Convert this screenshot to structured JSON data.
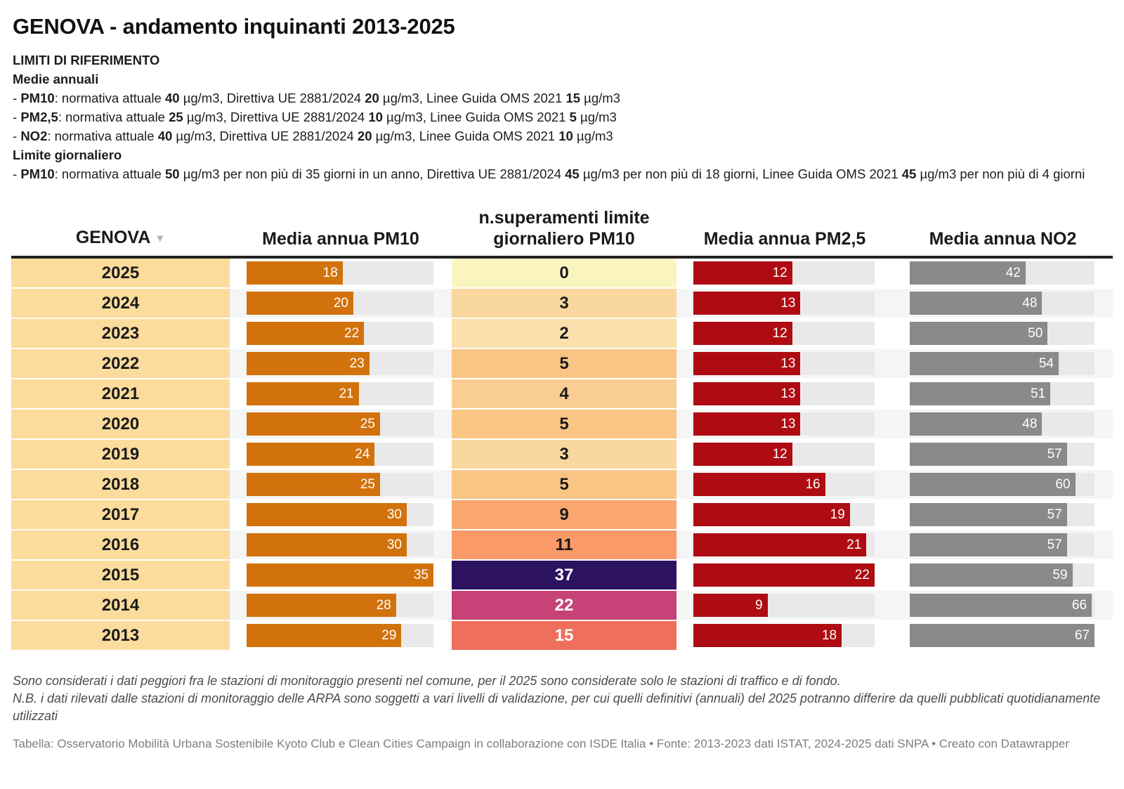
{
  "title": "GENOVA - andamento inquinanti 2013-2025",
  "limits": {
    "heading": "LIMITI DI RIFERIMENTO",
    "annual_heading": "Medie annuali",
    "annual_lines": [
      [
        {
          "t": "- "
        },
        {
          "t": "PM10",
          "b": true
        },
        {
          "t": ": normativa attuale "
        },
        {
          "t": "40",
          "b": true
        },
        {
          "t": " µg/m3, Direttiva UE 2881/2024 "
        },
        {
          "t": "20",
          "b": true
        },
        {
          "t": " µg/m3, Linee Guida OMS 2021 "
        },
        {
          "t": "15",
          "b": true
        },
        {
          "t": " µg/m3"
        }
      ],
      [
        {
          "t": "- "
        },
        {
          "t": "PM2,5",
          "b": true
        },
        {
          "t": ": normativa attuale "
        },
        {
          "t": "25",
          "b": true
        },
        {
          "t": " µg/m3, Direttiva UE 2881/2024 "
        },
        {
          "t": "10",
          "b": true
        },
        {
          "t": " µg/m3, Linee Guida OMS 2021 "
        },
        {
          "t": "5",
          "b": true
        },
        {
          "t": " µg/m3"
        }
      ],
      [
        {
          "t": "- "
        },
        {
          "t": "NO2",
          "b": true
        },
        {
          "t": ": normativa attuale "
        },
        {
          "t": "40",
          "b": true
        },
        {
          "t": " µg/m3, Direttiva UE 2881/2024 "
        },
        {
          "t": "20",
          "b": true
        },
        {
          "t": " µg/m3, Linee Guida OMS 2021 "
        },
        {
          "t": "10",
          "b": true
        },
        {
          "t": " µg/m3"
        }
      ]
    ],
    "daily_heading": "Limite giornaliero",
    "daily_lines": [
      [
        {
          "t": "- "
        },
        {
          "t": "PM10",
          "b": true
        },
        {
          "t": ": normativa attuale "
        },
        {
          "t": "50",
          "b": true
        },
        {
          "t": " µg/m3 per non più di 35 giorni in un anno, Direttiva UE 2881/2024 "
        },
        {
          "t": "45",
          "b": true
        },
        {
          "t": " µg/m3 per non più di 18 giorni, Linee Guida OMS 2021 "
        },
        {
          "t": "45",
          "b": true
        },
        {
          "t": " µg/m3 per non più di 4 giorni"
        }
      ]
    ]
  },
  "table": {
    "columns": [
      "GENOVA",
      "Media annua PM10",
      "n.superamenti limite giornaliero PM10",
      "Media annua PM2,5",
      "Media annua NO2"
    ],
    "sort_icon": "▼",
    "scales": {
      "pm10_max": 35,
      "pm25_max": 22,
      "no2_max": 67
    }
  },
  "chart_data": {
    "type": "table",
    "title": "GENOVA - andamento inquinanti 2013-2025",
    "categories": [
      "2025",
      "2024",
      "2023",
      "2022",
      "2021",
      "2020",
      "2019",
      "2018",
      "2017",
      "2016",
      "2015",
      "2014",
      "2013"
    ],
    "series": [
      {
        "name": "Media annua PM10",
        "values": [
          18,
          20,
          22,
          23,
          21,
          25,
          24,
          25,
          30,
          30,
          35,
          28,
          29
        ]
      },
      {
        "name": "n.superamenti limite giornaliero PM10",
        "values": [
          0,
          3,
          2,
          5,
          4,
          5,
          3,
          5,
          9,
          11,
          37,
          22,
          15
        ]
      },
      {
        "name": "Media annua PM2,5",
        "values": [
          12,
          13,
          12,
          13,
          13,
          13,
          12,
          16,
          19,
          21,
          22,
          9,
          18
        ]
      },
      {
        "name": "Media annua NO2",
        "values": [
          42,
          48,
          50,
          54,
          51,
          48,
          57,
          60,
          57,
          57,
          59,
          66,
          67
        ]
      }
    ],
    "layout": {
      "bars_scaled_to_column_max": true,
      "row_order": "descending years"
    }
  },
  "colors": {
    "pm10_bar": "#d2720d",
    "pm25_bar": "#ae0c12",
    "no2_bar": "#8a8a8a",
    "bar_track": "#e9e9e9",
    "year_bg": "#fbdc9c",
    "stripe": "#f5f5f5",
    "header_rule": "#222222",
    "exceed_scale": {
      "0": "#faf5bf",
      "2": "#fbe0ab",
      "3": "#fad79e",
      "4": "#facd92",
      "5": "#f9c584",
      "9": "#faa76f",
      "11": "#f99a68",
      "15": "#ef6f5d",
      "22": "#c64277",
      "37": "#2c1261"
    },
    "exceed_light_text_values": [
      15,
      22,
      37
    ],
    "exceed_dark_text": "#1a1a1a",
    "exceed_light_text": "#ffffff"
  },
  "footnotes": [
    "Sono considerati i dati peggiori fra le stazioni di monitoraggio presenti nel comune, per il 2025 sono considerate solo le stazioni di traffico e di fondo.",
    "N.B. i dati rilevati dalle stazioni di monitoraggio delle ARPA sono soggetti a vari livelli di validazione, per cui quelli definitivi (annuali) del 2025 potranno differire da quelli pubblicati quotidianamente utilizzati"
  ],
  "source_line": "Tabella: Osservatorio Mobilità Urbana Sostenibile Kyoto Club e Clean Cities Campaign in collaborazione con ISDE Italia • Fonte: 2013-2023 dati ISTAT, 2024-2025 dati SNPA • Creato con Datawrapper"
}
